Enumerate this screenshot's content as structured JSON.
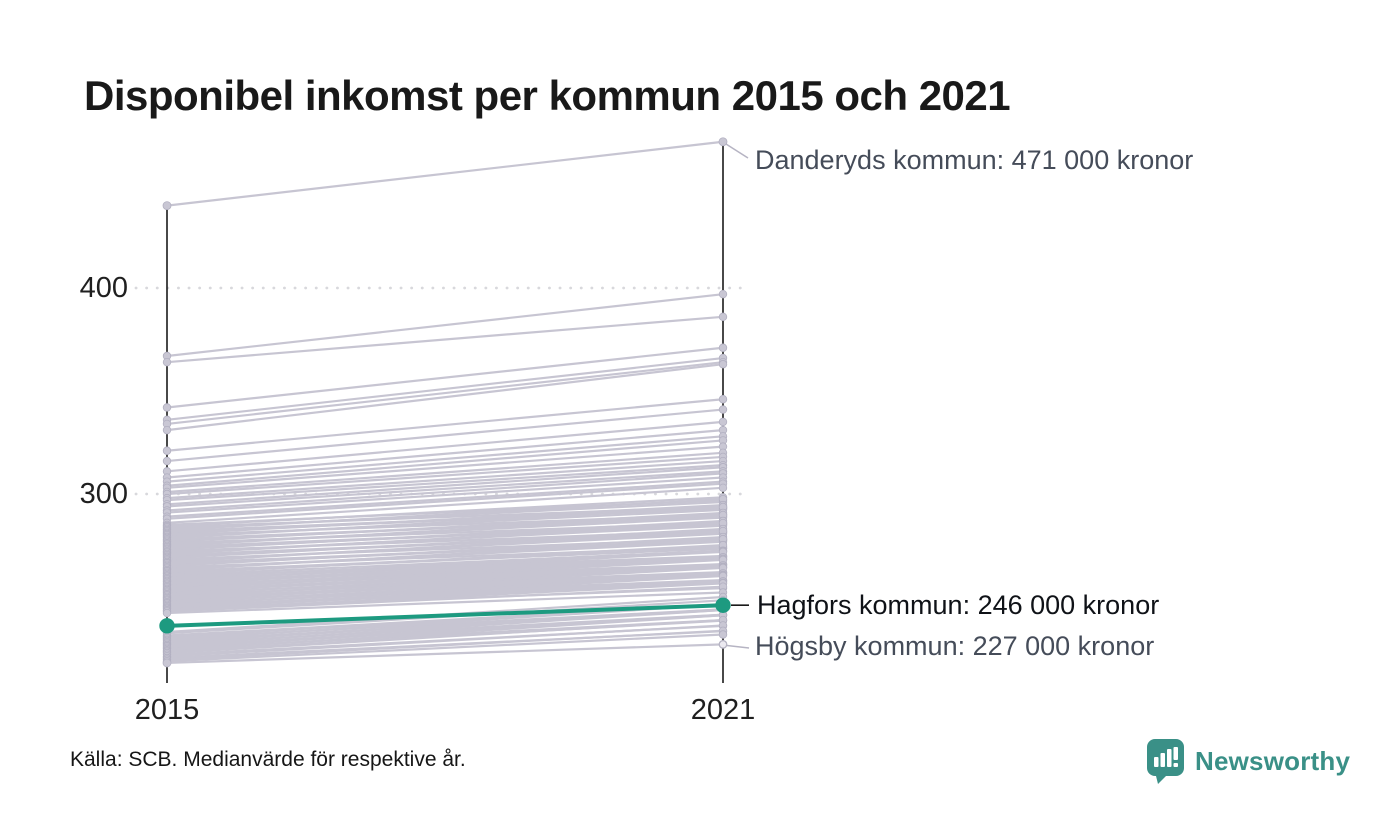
{
  "title": "Disponibel inkomst per kommun 2015 och 2021",
  "source": "Källa: SCB. Medianvärde för respektive år.",
  "branding": {
    "name": "Newsworthy"
  },
  "colors": {
    "accent_teal": "#1d9a80",
    "line_gray": "#c7c5d2",
    "dot_gray_fill": "#c9c7d4",
    "dot_gray_stroke": "#b2b0c1",
    "axis_black": "#1a1a1a",
    "grid_gray": "#d8d8dc",
    "annotation_gray_text": "#454c59",
    "annotation_dark_text": "#0f1217",
    "brand_teal": "#3a9087"
  },
  "chart_data": {
    "type": "line",
    "subtype": "slope-chart",
    "x": [
      2015,
      2021
    ],
    "x_tick_labels": [
      "2015",
      "2021"
    ],
    "y_ticks": [
      400,
      300
    ],
    "y_tick_labels": [
      "400",
      "300"
    ],
    "y_unit": "tusen kronor",
    "y_range_shown": [
      218,
      471
    ],
    "grid": "dotted-horizontal",
    "legend": "none",
    "annotations": [
      {
        "name": "Danderyds kommun",
        "label": "Danderyds kommun: 471 000 kronor",
        "year": 2021,
        "value": 471
      },
      {
        "name": "Hagfors kommun",
        "label": "Hagfors kommun: 246 000 kronor",
        "year": 2021,
        "value": 246,
        "highlighted": true
      },
      {
        "name": "Högsby kommun",
        "label": "Högsby kommun: 227 000 kronor",
        "year": 2021,
        "value": 227
      }
    ],
    "highlight_series": {
      "name": "Hagfors kommun",
      "values": [
        236,
        246
      ],
      "color": "#1d9a80"
    },
    "named_series": [
      {
        "name": "Danderyds kommun",
        "values": [
          440,
          471
        ]
      },
      {
        "name": "Högsby kommun",
        "values": [
          218,
          227
        ]
      }
    ],
    "background_series_values": [
      [
        367,
        397
      ],
      [
        364,
        386
      ],
      [
        342,
        371
      ],
      [
        336,
        366
      ],
      [
        334,
        364
      ],
      [
        331,
        363
      ],
      [
        321,
        346
      ],
      [
        316,
        341
      ],
      [
        311,
        335
      ],
      [
        308,
        331
      ],
      [
        306,
        328
      ],
      [
        304,
        326
      ],
      [
        303,
        323
      ],
      [
        301,
        320
      ],
      [
        300,
        318
      ],
      [
        298,
        316
      ],
      [
        297,
        314
      ],
      [
        295,
        313
      ],
      [
        294,
        311
      ],
      [
        292,
        310
      ],
      [
        291,
        308
      ],
      [
        289,
        306
      ],
      [
        288,
        305
      ],
      [
        286,
        303
      ],
      [
        285,
        297
      ],
      [
        284.4,
        298.4
      ],
      [
        283.8,
        293.8
      ],
      [
        283.1,
        296.1
      ],
      [
        282.5,
        297.5
      ],
      [
        281.9,
        292.9
      ],
      [
        281.2,
        293.2
      ],
      [
        280.6,
        294.6
      ],
      [
        280,
        290
      ],
      [
        279.3,
        292.3
      ],
      [
        278.7,
        293.7
      ],
      [
        278,
        289
      ],
      [
        277.4,
        289.4
      ],
      [
        276.8,
        290.8
      ],
      [
        276.1,
        286.1
      ],
      [
        275.5,
        288.5
      ],
      [
        274.8,
        289.8
      ],
      [
        274.2,
        285.2
      ],
      [
        273.5,
        285.5
      ],
      [
        272.9,
        286.9
      ],
      [
        272.2,
        282.2
      ],
      [
        271.6,
        284.6
      ],
      [
        270.9,
        285.9
      ],
      [
        270.3,
        281.3
      ],
      [
        269.6,
        281.6
      ],
      [
        269,
        283
      ],
      [
        268.3,
        278.3
      ],
      [
        267.7,
        280.7
      ],
      [
        267,
        282
      ],
      [
        266.4,
        277.4
      ],
      [
        265.7,
        277.7
      ],
      [
        265.1,
        279.1
      ],
      [
        264.4,
        274.4
      ],
      [
        263.8,
        276.8
      ],
      [
        263.1,
        278.1
      ],
      [
        262.5,
        273.5
      ],
      [
        261.8,
        273.8
      ],
      [
        261.2,
        275.2
      ],
      [
        260.5,
        272.5
      ],
      [
        259.9,
        269.9
      ],
      [
        259.2,
        272.2
      ],
      [
        258.6,
        269.6
      ],
      [
        257.9,
        271.9
      ],
      [
        257.3,
        269.3
      ],
      [
        256.6,
        268.6
      ],
      [
        256,
        266
      ],
      [
        255.3,
        268.3
      ],
      [
        254.7,
        265.7
      ],
      [
        254,
        268
      ],
      [
        253.4,
        265.4
      ],
      [
        252.7,
        264.7
      ],
      [
        252.1,
        262.1
      ],
      [
        251.4,
        264.4
      ],
      [
        250.8,
        261.8
      ],
      [
        250.1,
        264.1
      ],
      [
        249.5,
        261.5
      ],
      [
        248.8,
        260.8
      ],
      [
        248.2,
        258.2
      ],
      [
        247.5,
        260.5
      ],
      [
        246.9,
        257.9
      ],
      [
        246.2,
        260.2
      ],
      [
        245.6,
        257.6
      ],
      [
        244.9,
        256.9
      ],
      [
        244.3,
        254.3
      ],
      [
        243.6,
        256.6
      ],
      [
        243,
        255
      ],
      [
        242.2,
        252.2
      ],
      [
        233,
        250
      ],
      [
        232.4,
        248.4
      ],
      [
        231.3,
        246.3
      ],
      [
        230.6,
        246.6
      ],
      [
        230,
        244
      ],
      [
        229.3,
        246.3
      ],
      [
        228.7,
        243.7
      ],
      [
        228,
        244
      ],
      [
        227.4,
        241.4
      ],
      [
        226.7,
        243.7
      ],
      [
        226.1,
        241.1
      ],
      [
        225.4,
        241.4
      ],
      [
        224.8,
        238.8
      ],
      [
        224.1,
        241.1
      ],
      [
        223.5,
        238.5
      ],
      [
        222.8,
        238.8
      ],
      [
        222,
        236
      ],
      [
        221.2,
        236.2
      ],
      [
        220.4,
        233.4
      ],
      [
        219.6,
        233.6
      ],
      [
        218.8,
        231.8
      ]
    ]
  }
}
